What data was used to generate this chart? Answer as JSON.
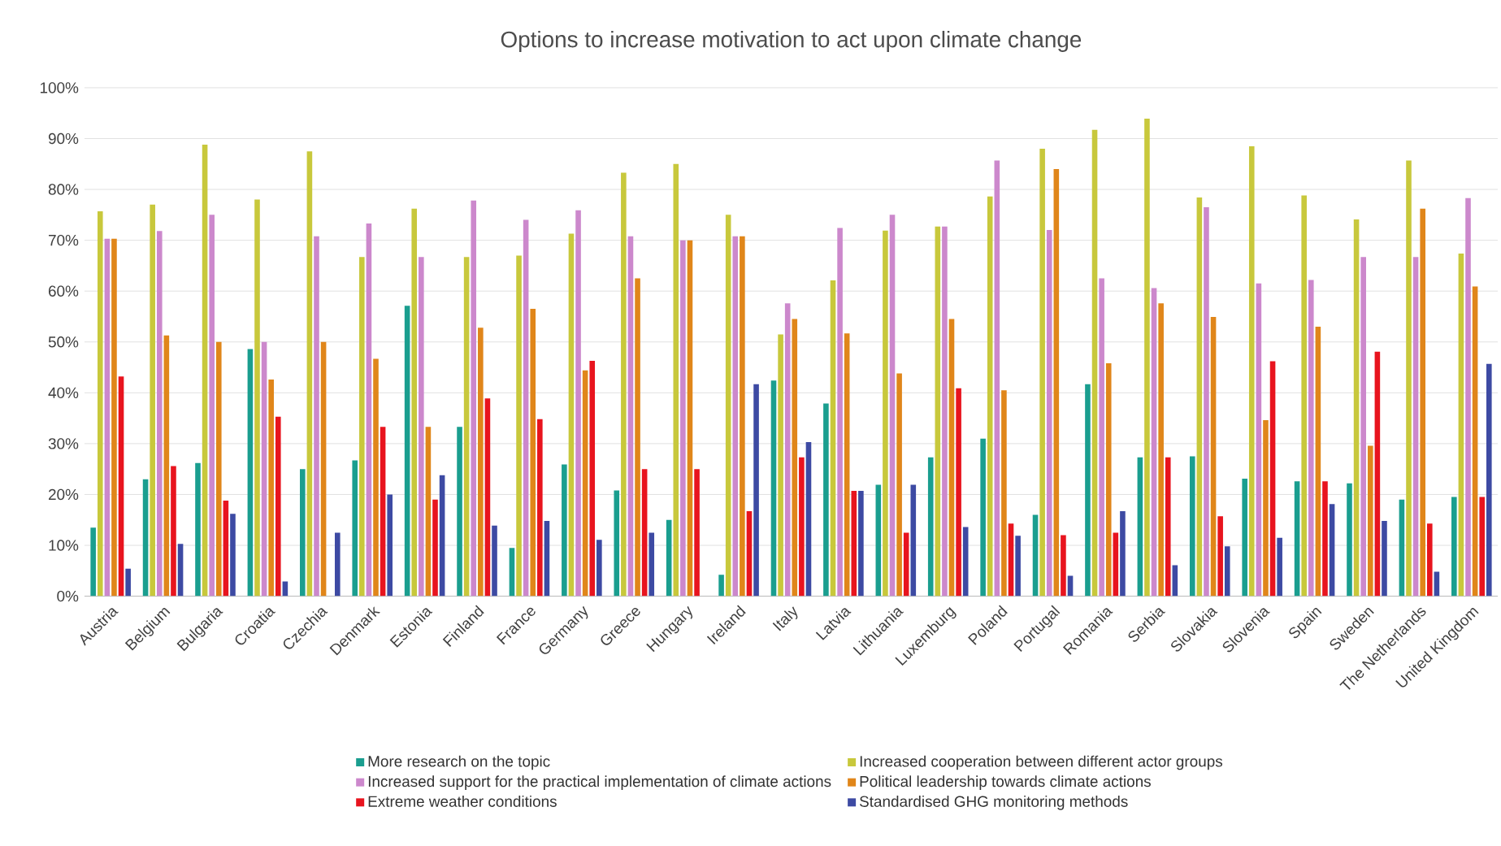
{
  "chart_data": {
    "type": "bar",
    "title": "Options to increase motivation to act upon climate change",
    "categories": [
      "Austria",
      "Belgium",
      "Bulgaria",
      "Croatia",
      "Czechia",
      "Denmark",
      "Estonia",
      "Finland",
      "France",
      "Germany",
      "Greece",
      "Hungary",
      "Ireland",
      "Italy",
      "Latvia",
      "Lithuania",
      "Luxemburg",
      "Poland",
      "Portugal",
      "Romania",
      "Serbia",
      "Slovakia",
      "Slovenia",
      "Spain",
      "Sweden",
      "The Netherlands",
      "United Kingdom"
    ],
    "series": [
      {
        "name": "More research on the topic",
        "color": "#1a9e8f",
        "values": [
          13.5,
          23,
          26.2,
          48.6,
          25,
          26.7,
          57.1,
          33.3,
          9.5,
          25.9,
          20.8,
          15,
          4.2,
          42.4,
          37.9,
          21.9,
          27.3,
          31,
          16,
          41.7,
          27.3,
          27.5,
          23.1,
          22.6,
          22.2,
          19,
          19.5
        ]
      },
      {
        "name": "Increased cooperation between different actor groups",
        "color": "#c8c83c",
        "values": [
          75.7,
          77,
          88.8,
          78,
          87.5,
          66.7,
          76.2,
          66.7,
          67,
          71.3,
          83.3,
          85,
          75,
          51.5,
          62.1,
          71.9,
          72.7,
          78.6,
          88,
          91.7,
          93.9,
          78.4,
          88.5,
          78.8,
          74.1,
          85.7,
          67.4
        ]
      },
      {
        "name": "Increased support for the practical implementation of climate actions",
        "color": "#cc88cc",
        "values": [
          70.3,
          71.8,
          75,
          50,
          70.8,
          73.3,
          66.7,
          77.8,
          74,
          75.9,
          70.8,
          70,
          70.8,
          57.6,
          72.4,
          75,
          72.7,
          85.7,
          72,
          62.5,
          60.6,
          76.5,
          61.5,
          62.2,
          66.7,
          66.7,
          78.3
        ]
      },
      {
        "name": "Political leadership towards climate actions",
        "color": "#e0861a",
        "values": [
          70.3,
          51.3,
          50,
          42.6,
          50,
          46.7,
          33.3,
          52.8,
          56.5,
          44.4,
          62.5,
          70,
          70.8,
          54.5,
          51.7,
          43.8,
          54.5,
          40.5,
          84,
          45.8,
          57.6,
          54.9,
          34.6,
          53,
          29.6,
          76.2,
          60.9
        ]
      },
      {
        "name": "Extreme weather conditions",
        "color": "#e8141e",
        "values": [
          43.2,
          25.6,
          18.8,
          35.3,
          0,
          33.3,
          19,
          38.9,
          34.8,
          46.3,
          25,
          25,
          16.7,
          27.3,
          20.7,
          12.5,
          40.9,
          14.3,
          12,
          12.5,
          27.3,
          15.7,
          46.2,
          22.6,
          48.1,
          14.3,
          19.5
        ]
      },
      {
        "name": "Standardised GHG monitoring methods",
        "color": "#3d4aa3",
        "values": [
          5.4,
          10.3,
          16.2,
          2.9,
          12.5,
          20,
          23.8,
          13.9,
          14.8,
          11.1,
          12.5,
          0,
          41.7,
          30.3,
          20.7,
          21.9,
          13.6,
          11.9,
          4,
          16.7,
          6.1,
          9.8,
          11.5,
          18.1,
          14.8,
          4.8,
          45.7
        ]
      }
    ],
    "ylim": [
      0,
      100
    ],
    "yticks": [
      {
        "value": 0,
        "label": "0%"
      },
      {
        "value": 10,
        "label": "10%"
      },
      {
        "value": 20,
        "label": "20%"
      },
      {
        "value": 30,
        "label": "30%"
      },
      {
        "value": 40,
        "label": "40%"
      },
      {
        "value": 50,
        "label": "50%"
      },
      {
        "value": 60,
        "label": "60%"
      },
      {
        "value": 70,
        "label": "70%"
      },
      {
        "value": 80,
        "label": "80%"
      },
      {
        "value": 90,
        "label": "90%"
      },
      {
        "value": 100,
        "label": "100%"
      }
    ],
    "grid": "y",
    "legend": "bottom"
  }
}
